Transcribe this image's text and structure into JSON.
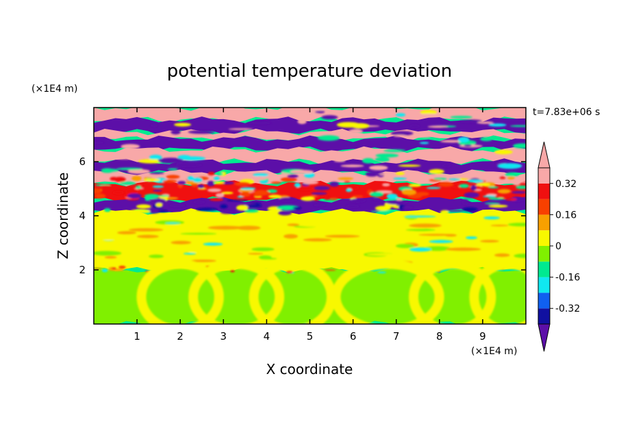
{
  "chart_data": {
    "type": "heatmap",
    "title": "potential temperature deviation",
    "xlabel": "X coordinate",
    "ylabel": "Z coordinate",
    "x_unit": "(×1E4 m)",
    "y_unit": "(×1E4 m)",
    "time_label": "t=7.83e+06 s",
    "xlim": [
      0,
      10
    ],
    "ylim": [
      0,
      8
    ],
    "x_ticks": [
      1,
      2,
      3,
      4,
      5,
      6,
      7,
      8,
      9
    ],
    "y_ticks": [
      2,
      4,
      6
    ],
    "colorbar": {
      "levels": [
        -0.4,
        -0.32,
        -0.24,
        -0.16,
        -0.08,
        0,
        0.08,
        0.16,
        0.24,
        0.32,
        0.4
      ],
      "tick_labels": [
        "0.32",
        "0.16",
        "0",
        "-0.16",
        "-0.32"
      ],
      "tick_values": [
        0.32,
        0.16,
        0,
        -0.16,
        -0.32
      ],
      "colors": [
        "#5c0fa8",
        "#1010a0",
        "#1060f0",
        "#10e8f0",
        "#00ea90",
        "#80f000",
        "#f8f800",
        "#f8a000",
        "#f84000",
        "#f01010",
        "#f8a8a8"
      ]
    },
    "layers": [
      {
        "z_range": [
          7.55,
          8.0
        ],
        "dominant_value": 0.45
      },
      {
        "z_range": [
          7.1,
          7.55
        ],
        "dominant_value": -0.45
      },
      {
        "z_range": [
          6.85,
          7.1
        ],
        "dominant_value": 0.45
      },
      {
        "z_range": [
          6.45,
          6.85
        ],
        "dominant_value": -0.45
      },
      {
        "z_range": [
          6.0,
          6.45
        ],
        "dominant_value": 0.45
      },
      {
        "z_range": [
          5.6,
          6.0
        ],
        "dominant_value": -0.45
      },
      {
        "z_range": [
          5.2,
          5.6
        ],
        "dominant_value": 0.45
      },
      {
        "z_range": [
          4.6,
          5.2
        ],
        "dominant_value": 0.3
      },
      {
        "z_range": [
          4.15,
          4.6
        ],
        "dominant_value": -0.45
      },
      {
        "z_range": [
          2.0,
          4.15
        ],
        "dominant_value": 0.04
      },
      {
        "z_range": [
          0.0,
          2.0
        ],
        "dominant_value": -0.04
      }
    ]
  }
}
